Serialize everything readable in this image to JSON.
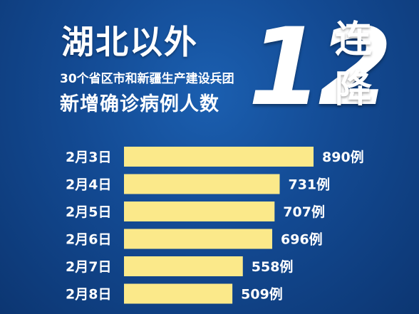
{
  "headline": {
    "main": "湖北以外",
    "sub1": "30个省区市和新疆生产建设兵团",
    "sub2": "新增确诊病例人数",
    "number": "12",
    "suffix_top": "连",
    "suffix_bottom": "降"
  },
  "colors": {
    "bar": "#fbe98a",
    "text": "#ffffff",
    "background": "#134a93"
  },
  "chart_data": {
    "type": "bar",
    "orientation": "horizontal",
    "title": "",
    "categories": [
      "2月3日",
      "2月4日",
      "2月5日",
      "2月6日",
      "2月7日",
      "2月8日"
    ],
    "values": [
      890,
      731,
      707,
      696,
      558,
      509
    ],
    "value_labels": [
      "890例",
      "731例",
      "707例",
      "696例",
      "558例",
      "509例"
    ],
    "xlabel": "",
    "ylabel": "",
    "xlim": [
      0,
      890
    ],
    "grid": false,
    "legend": "none"
  }
}
